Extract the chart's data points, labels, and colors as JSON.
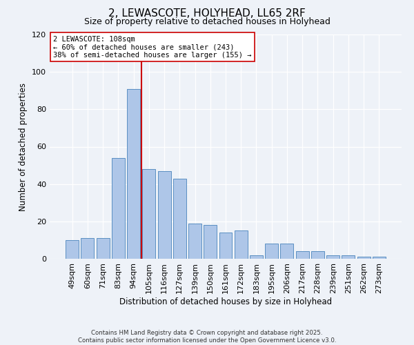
{
  "title": "2, LEWASCOTE, HOLYHEAD, LL65 2RF",
  "subtitle": "Size of property relative to detached houses in Holyhead",
  "xlabel": "Distribution of detached houses by size in Holyhead",
  "ylabel": "Number of detached properties",
  "categories": [
    "49sqm",
    "60sqm",
    "71sqm",
    "83sqm",
    "94sqm",
    "105sqm",
    "116sqm",
    "127sqm",
    "139sqm",
    "150sqm",
    "161sqm",
    "172sqm",
    "183sqm",
    "195sqm",
    "206sqm",
    "217sqm",
    "228sqm",
    "239sqm",
    "251sqm",
    "262sqm",
    "273sqm"
  ],
  "values": [
    10,
    11,
    11,
    54,
    91,
    48,
    47,
    43,
    19,
    18,
    14,
    15,
    2,
    8,
    8,
    4,
    4,
    2,
    2,
    1,
    1
  ],
  "bar_color": "#aec6e8",
  "bar_edge_color": "#5a8fc2",
  "vline_color": "#cc0000",
  "annotation_line1": "2 LEWASCOTE: 108sqm",
  "annotation_line2": "← 60% of detached houses are smaller (243)",
  "annotation_line3": "38% of semi-detached houses are larger (155) →",
  "annotation_box_color": "#ffffff",
  "annotation_box_edge": "#cc0000",
  "footer": "Contains HM Land Registry data © Crown copyright and database right 2025.\nContains public sector information licensed under the Open Government Licence v3.0.",
  "background_color": "#eef2f8",
  "ylim": [
    0,
    120
  ],
  "yticks": [
    0,
    20,
    40,
    60,
    80,
    100,
    120
  ]
}
